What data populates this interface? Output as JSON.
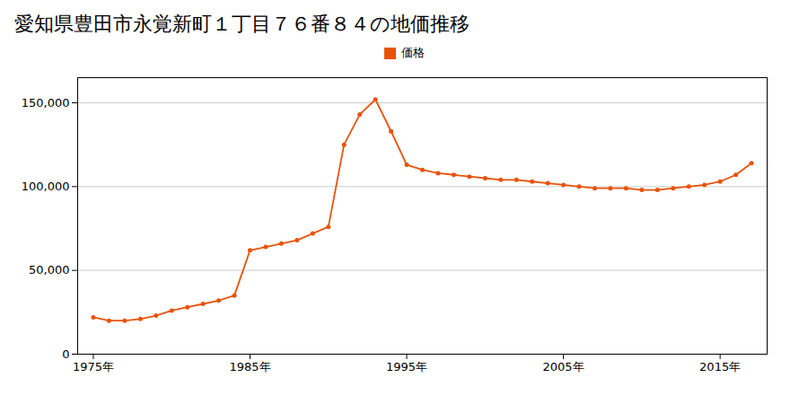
{
  "chart_data": {
    "type": "line",
    "title": "愛知県豊田市永覚新町１丁目７６番８４の地価推移",
    "x": [
      1975,
      1976,
      1977,
      1978,
      1979,
      1980,
      1981,
      1982,
      1983,
      1984,
      1985,
      1986,
      1987,
      1988,
      1989,
      1990,
      1991,
      1992,
      1993,
      1994,
      1995,
      1996,
      1997,
      1998,
      1999,
      2000,
      2001,
      2002,
      2003,
      2004,
      2005,
      2006,
      2007,
      2008,
      2009,
      2010,
      2011,
      2012,
      2013,
      2014,
      2015,
      2016,
      2017
    ],
    "series": [
      {
        "name": "価格",
        "color": "#E8530A",
        "marker": "circle",
        "values": [
          22000,
          20000,
          20000,
          21000,
          23000,
          26000,
          28000,
          30000,
          32000,
          35000,
          62000,
          64000,
          66000,
          68000,
          72000,
          76000,
          125000,
          143000,
          152000,
          133000,
          113000,
          110000,
          108000,
          107000,
          106000,
          105000,
          104000,
          104000,
          103000,
          102000,
          101000,
          100000,
          99000,
          99000,
          99000,
          98000,
          98000,
          99000,
          100000,
          101000,
          103000,
          107000,
          114000
        ]
      }
    ],
    "xlim": [
      1974,
      2018
    ],
    "xticks": [
      {
        "value": 1975,
        "label": "1975年"
      },
      {
        "value": 1985,
        "label": "1985年"
      },
      {
        "value": 1995,
        "label": "1995年"
      },
      {
        "value": 2005,
        "label": "2005年"
      },
      {
        "value": 2015,
        "label": "2015年"
      }
    ],
    "ylim": [
      0,
      165000
    ],
    "yticks": [
      0,
      {
        "value": 50000,
        "label": "50,000"
      },
      {
        "value": 100000,
        "label": "100,000"
      },
      {
        "value": 150000,
        "label": "150,000"
      }
    ],
    "grid": true,
    "legend": "top"
  }
}
